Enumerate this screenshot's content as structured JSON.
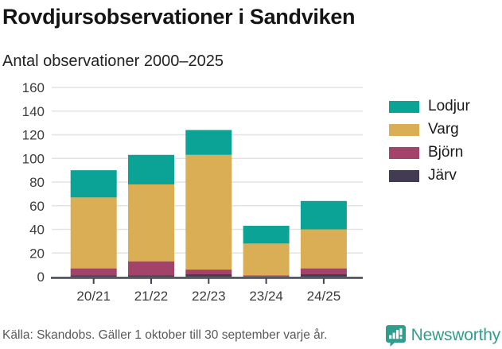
{
  "chart_data": {
    "type": "stacked-bar",
    "title": "Rovdjursobservationer i Sandviken",
    "subtitle": "Antal observationer 2000–2025",
    "categories": [
      "20/21",
      "21/22",
      "22/23",
      "23/24",
      "24/25"
    ],
    "series": [
      {
        "name": "Lodjur",
        "color": "#0ba396",
        "values": [
          23,
          25,
          21,
          15,
          24
        ]
      },
      {
        "name": "Varg",
        "color": "#d9ae55",
        "values": [
          60,
          65,
          97,
          27,
          33
        ]
      },
      {
        "name": "Björn",
        "color": "#a4436a",
        "values": [
          6,
          12,
          4,
          1,
          5
        ]
      },
      {
        "name": "Järv",
        "color": "#413c51",
        "values": [
          1,
          1,
          2,
          0,
          2
        ]
      }
    ],
    "totals": [
      90,
      103,
      124,
      43,
      64
    ],
    "ylim": [
      0,
      160
    ],
    "ytick_step": 20,
    "yticks": [
      0,
      20,
      40,
      60,
      80,
      100,
      120,
      140,
      160
    ],
    "grid": true,
    "legend_position": "right",
    "grid_color": "#e3e3e3",
    "axis_color": "#41454f",
    "tick_label_color": "#3d3d3d"
  },
  "footer": {
    "source": "Källa: Skandobs. Gäller 1 oktober till 30 september varje år.",
    "brand": "Newsworthy",
    "brand_color": "#2f9e8e"
  }
}
